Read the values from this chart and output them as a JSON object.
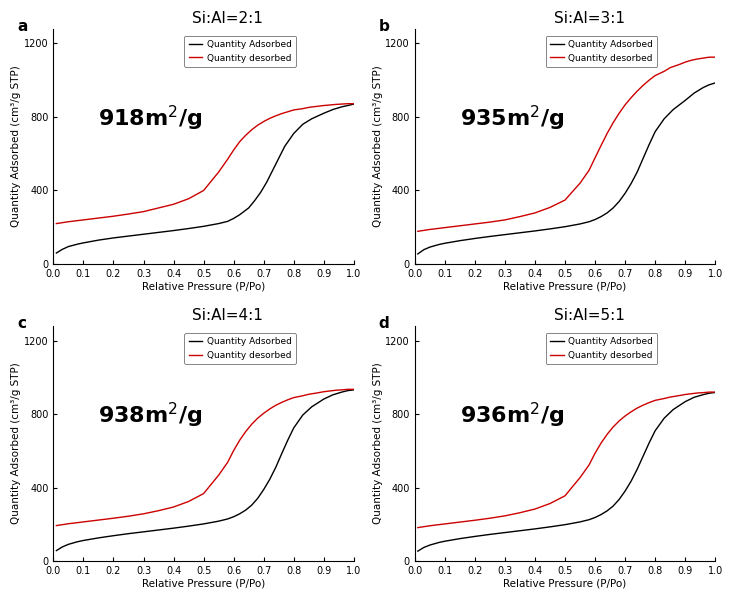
{
  "panels": [
    {
      "label": "a",
      "title": "Si:Al=2:1",
      "surface_area": "918m$^2$/g",
      "adsorb_x": [
        0.01,
        0.03,
        0.05,
        0.08,
        0.1,
        0.15,
        0.2,
        0.25,
        0.3,
        0.35,
        0.4,
        0.45,
        0.5,
        0.55,
        0.58,
        0.6,
        0.62,
        0.65,
        0.67,
        0.69,
        0.71,
        0.73,
        0.75,
        0.77,
        0.8,
        0.83,
        0.86,
        0.9,
        0.93,
        0.96,
        0.98,
        1.0
      ],
      "adsorb_y": [
        60,
        80,
        95,
        108,
        115,
        130,
        142,
        152,
        162,
        172,
        182,
        193,
        205,
        220,
        232,
        248,
        268,
        305,
        345,
        390,
        445,
        510,
        575,
        640,
        710,
        760,
        790,
        820,
        840,
        855,
        862,
        870
      ],
      "desorb_x": [
        1.0,
        0.98,
        0.96,
        0.94,
        0.92,
        0.9,
        0.88,
        0.85,
        0.83,
        0.8,
        0.78,
        0.76,
        0.74,
        0.72,
        0.7,
        0.68,
        0.66,
        0.64,
        0.62,
        0.6,
        0.58,
        0.55,
        0.52,
        0.5,
        0.45,
        0.4,
        0.35,
        0.3,
        0.25,
        0.2,
        0.15,
        0.1,
        0.05,
        0.01
      ],
      "desorb_y": [
        872,
        872,
        870,
        868,
        865,
        862,
        858,
        852,
        845,
        838,
        828,
        818,
        806,
        792,
        775,
        755,
        730,
        700,
        665,
        620,
        570,
        500,
        440,
        400,
        355,
        325,
        305,
        285,
        272,
        260,
        250,
        240,
        230,
        220
      ]
    },
    {
      "label": "b",
      "title": "Si:Al=3:1",
      "surface_area": "935m$^2$/g",
      "adsorb_x": [
        0.01,
        0.03,
        0.05,
        0.08,
        0.1,
        0.15,
        0.2,
        0.25,
        0.3,
        0.35,
        0.4,
        0.45,
        0.5,
        0.55,
        0.58,
        0.6,
        0.62,
        0.64,
        0.66,
        0.68,
        0.7,
        0.72,
        0.74,
        0.76,
        0.78,
        0.8,
        0.83,
        0.86,
        0.9,
        0.93,
        0.96,
        0.98,
        1.0
      ],
      "adsorb_y": [
        55,
        78,
        92,
        106,
        113,
        127,
        139,
        150,
        160,
        170,
        180,
        191,
        203,
        218,
        230,
        242,
        258,
        278,
        305,
        340,
        385,
        438,
        500,
        575,
        650,
        720,
        790,
        840,
        890,
        930,
        960,
        975,
        985
      ],
      "desorb_x": [
        1.0,
        0.98,
        0.96,
        0.94,
        0.92,
        0.9,
        0.88,
        0.85,
        0.83,
        0.8,
        0.78,
        0.76,
        0.74,
        0.72,
        0.7,
        0.68,
        0.66,
        0.64,
        0.62,
        0.6,
        0.58,
        0.55,
        0.52,
        0.5,
        0.45,
        0.4,
        0.35,
        0.3,
        0.25,
        0.2,
        0.15,
        0.1,
        0.05,
        0.01
      ],
      "desorb_y": [
        1125,
        1125,
        1120,
        1115,
        1108,
        1098,
        1085,
        1068,
        1048,
        1025,
        1000,
        972,
        940,
        905,
        866,
        820,
        768,
        710,
        645,
        578,
        510,
        440,
        385,
        348,
        308,
        278,
        258,
        240,
        228,
        218,
        208,
        198,
        188,
        178
      ]
    },
    {
      "label": "c",
      "title": "Si:Al=4:1",
      "surface_area": "938m$^2$/g",
      "adsorb_x": [
        0.01,
        0.03,
        0.05,
        0.08,
        0.1,
        0.15,
        0.2,
        0.25,
        0.3,
        0.35,
        0.4,
        0.45,
        0.5,
        0.55,
        0.58,
        0.6,
        0.62,
        0.64,
        0.66,
        0.68,
        0.7,
        0.72,
        0.74,
        0.76,
        0.78,
        0.8,
        0.83,
        0.86,
        0.9,
        0.93,
        0.96,
        0.98,
        1.0
      ],
      "adsorb_y": [
        58,
        78,
        92,
        106,
        113,
        127,
        139,
        150,
        160,
        170,
        180,
        191,
        203,
        218,
        230,
        242,
        258,
        278,
        305,
        342,
        390,
        445,
        510,
        585,
        658,
        725,
        795,
        840,
        882,
        905,
        920,
        928,
        932
      ],
      "desorb_x": [
        1.0,
        0.98,
        0.96,
        0.94,
        0.92,
        0.9,
        0.88,
        0.85,
        0.83,
        0.8,
        0.78,
        0.76,
        0.74,
        0.72,
        0.7,
        0.68,
        0.66,
        0.64,
        0.62,
        0.6,
        0.58,
        0.55,
        0.52,
        0.5,
        0.45,
        0.4,
        0.35,
        0.3,
        0.25,
        0.2,
        0.15,
        0.1,
        0.05,
        0.01
      ],
      "desorb_y": [
        935,
        935,
        932,
        930,
        926,
        922,
        916,
        908,
        900,
        890,
        878,
        864,
        848,
        828,
        805,
        778,
        745,
        705,
        658,
        602,
        538,
        468,
        408,
        368,
        325,
        295,
        275,
        258,
        245,
        234,
        224,
        214,
        204,
        194
      ]
    },
    {
      "label": "d",
      "title": "Si:Al=5:1",
      "surface_area": "936m$^2$/g",
      "adsorb_x": [
        0.01,
        0.03,
        0.05,
        0.08,
        0.1,
        0.15,
        0.2,
        0.25,
        0.3,
        0.35,
        0.4,
        0.45,
        0.5,
        0.55,
        0.58,
        0.6,
        0.62,
        0.64,
        0.66,
        0.68,
        0.7,
        0.72,
        0.74,
        0.76,
        0.78,
        0.8,
        0.83,
        0.86,
        0.9,
        0.93,
        0.96,
        0.98,
        1.0
      ],
      "adsorb_y": [
        55,
        75,
        88,
        102,
        109,
        123,
        135,
        146,
        156,
        166,
        176,
        187,
        199,
        214,
        226,
        238,
        254,
        274,
        300,
        336,
        382,
        436,
        500,
        572,
        644,
        710,
        778,
        825,
        868,
        892,
        906,
        914,
        918
      ],
      "desorb_x": [
        1.0,
        0.98,
        0.96,
        0.94,
        0.92,
        0.9,
        0.88,
        0.85,
        0.83,
        0.8,
        0.78,
        0.76,
        0.74,
        0.72,
        0.7,
        0.68,
        0.66,
        0.64,
        0.62,
        0.6,
        0.58,
        0.55,
        0.52,
        0.5,
        0.45,
        0.4,
        0.35,
        0.3,
        0.25,
        0.2,
        0.15,
        0.1,
        0.05,
        0.01
      ],
      "desorb_y": [
        920,
        920,
        917,
        915,
        911,
        907,
        901,
        893,
        885,
        875,
        863,
        849,
        833,
        813,
        790,
        763,
        730,
        690,
        643,
        588,
        524,
        455,
        396,
        356,
        314,
        284,
        264,
        247,
        234,
        223,
        213,
        203,
        193,
        183
      ]
    }
  ],
  "ylim": [
    0,
    1280
  ],
  "xlim": [
    0.0,
    1.0
  ],
  "yticks": [
    0,
    400,
    800,
    1200
  ],
  "xticks": [
    0.0,
    0.1,
    0.2,
    0.3,
    0.4,
    0.5,
    0.6,
    0.7,
    0.8,
    0.9,
    1.0
  ],
  "ylabel": "Quantity Adsorbed (cm³/g STP)",
  "xlabel": "Relative Pressure (P/Po)",
  "adsorb_color": "#000000",
  "desorb_color": "#cc0000",
  "legend_adsorb": "Quantity Adsorbed",
  "legend_desorb": "Quantity desorbed",
  "surface_area_fontsize": 16,
  "label_fontsize": 11,
  "title_fontsize": 11,
  "axis_fontsize": 7,
  "background_color": "#ffffff"
}
